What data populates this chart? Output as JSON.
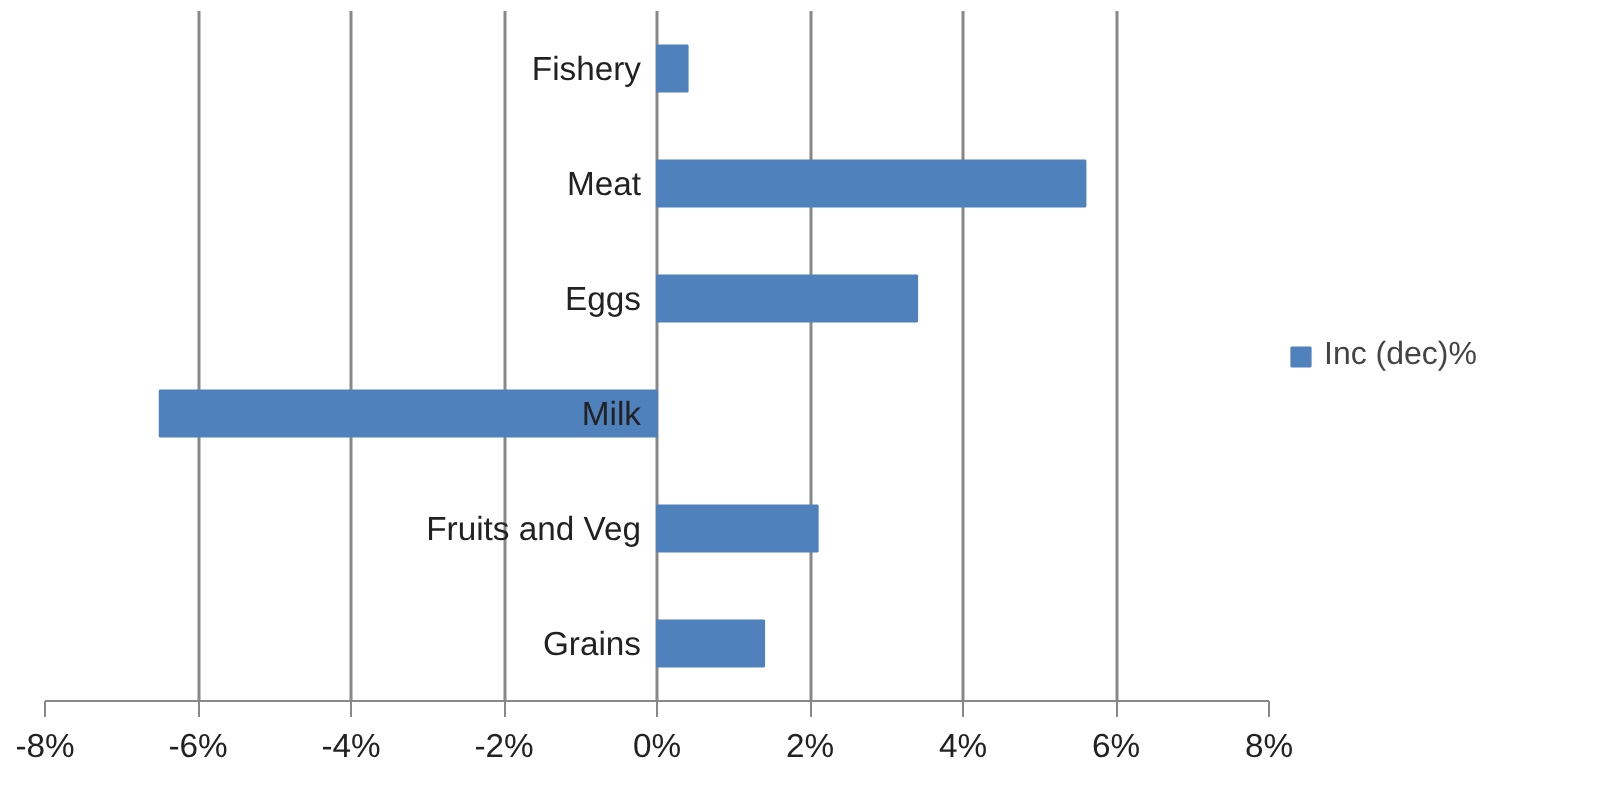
{
  "chart_data": {
    "type": "bar",
    "orientation": "horizontal",
    "categories": [
      "Fishery",
      "Meat",
      "Eggs",
      "Milk",
      "Fruits and Veg",
      "Grains"
    ],
    "series": [
      {
        "name": "Inc (dec)%",
        "color": "#4f81bd",
        "values": [
          0.4,
          5.6,
          3.4,
          -6.5,
          2.1,
          1.4
        ]
      }
    ],
    "xlim": [
      -8,
      8
    ],
    "xticks": [
      {
        "value": -8,
        "label": "-8%"
      },
      {
        "value": -6,
        "label": "-6%"
      },
      {
        "value": -4,
        "label": "-4%"
      },
      {
        "value": -2,
        "label": "-2%"
      },
      {
        "value": 0,
        "label": "0%"
      },
      {
        "value": 2,
        "label": "2%"
      },
      {
        "value": 4,
        "label": "4%"
      },
      {
        "value": 6,
        "label": "6%"
      },
      {
        "value": 8,
        "label": "8%"
      }
    ],
    "grid": "x",
    "legend": "right"
  }
}
